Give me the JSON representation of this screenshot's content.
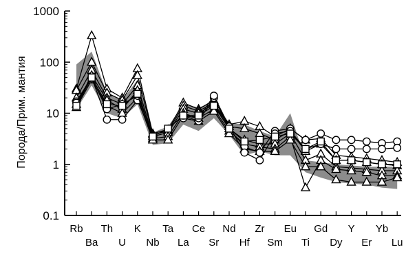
{
  "chart_data": {
    "type": "line",
    "ylabel": "Порода/Прим. мантия",
    "xlabel": "",
    "yscale": "log",
    "ylim": [
      0.1,
      1000
    ],
    "yticks": [
      "0.1",
      "1",
      "10",
      "100",
      "1000"
    ],
    "categories": [
      "Rb",
      "Ba",
      "Th",
      "U",
      "K",
      "Nb",
      "Ta",
      "La",
      "Ce",
      "Sr",
      "Nd",
      "Hf",
      "Zr",
      "Sm",
      "Eu",
      "Ti",
      "Gd",
      "Dy",
      "Y",
      "Er",
      "Yb",
      "Lu"
    ],
    "colors": {
      "envelope": "#8c8c8c",
      "line": "#000000",
      "marker_fill": "#ffffff"
    },
    "envelope": {
      "upper": [
        90,
        160,
        25,
        18,
        45,
        4.2,
        5.5,
        15,
        13,
        16,
        6.5,
        6,
        4.5,
        3.5,
        10,
        1.2,
        1.1,
        1.0,
        0.95,
        0.9,
        0.9,
        0.9
      ],
      "lower": [
        12,
        35,
        10,
        8,
        15,
        2.4,
        2.6,
        6,
        4.5,
        8,
        3.8,
        1.5,
        1.8,
        1.5,
        1.5,
        0.7,
        0.55,
        0.45,
        0.42,
        0.4,
        0.35,
        0.33
      ]
    },
    "series": [
      {
        "marker": "triangle",
        "values": [
          30,
          330,
          30,
          20,
          75,
          4,
          4.8,
          16,
          12,
          18,
          6,
          7,
          5.5,
          3.5,
          5,
          3,
          3.2,
          1.5,
          1.4,
          1.3,
          1.2,
          1.1
        ]
      },
      {
        "marker": "triangle",
        "values": [
          28,
          100,
          25,
          18,
          55,
          3.8,
          4.5,
          14,
          11,
          16,
          5.5,
          5,
          4,
          3,
          4.5,
          1.8,
          2.5,
          1.2,
          1.2,
          1.1,
          1.0,
          0.95
        ]
      },
      {
        "marker": "triangle",
        "values": [
          20,
          70,
          20,
          15,
          35,
          3.5,
          4.2,
          12,
          10,
          15,
          5,
          3,
          2.5,
          2.5,
          4,
          1.2,
          1.6,
          0.9,
          0.85,
          0.8,
          0.75,
          0.75
        ]
      },
      {
        "marker": "triangle",
        "values": [
          15,
          55,
          18,
          12,
          28,
          3.2,
          3.5,
          10,
          8,
          12,
          4.5,
          2.5,
          2.2,
          2,
          3.5,
          0.35,
          1.2,
          0.8,
          0.75,
          0.7,
          0.6,
          0.6
        ]
      },
      {
        "marker": "triangle",
        "values": [
          13,
          45,
          14,
          10,
          20,
          3,
          3,
          9,
          7,
          11,
          4,
          2,
          1.8,
          1.8,
          3,
          0.9,
          0.9,
          0.5,
          0.45,
          0.45,
          0.45,
          0.55
        ]
      },
      {
        "marker": "circle",
        "values": [
          17,
          50,
          7.5,
          7.5,
          18,
          3.5,
          null,
          8,
          7,
          20,
          5,
          2.2,
          1.7,
          4.5,
          5,
          3,
          4,
          3,
          3,
          2.8,
          2.6,
          2.8
        ]
      },
      {
        "marker": "circle",
        "values": [
          16,
          48,
          12,
          15,
          22,
          3.6,
          null,
          9,
          8,
          22,
          5.5,
          1.7,
          1.2,
          4,
          4.5,
          2,
          2.5,
          2,
          2,
          2,
          2,
          2.1
        ]
      },
      {
        "marker": "square",
        "values": [
          14,
          50,
          15,
          14,
          24,
          3.5,
          5,
          9,
          9,
          14,
          5,
          2.8,
          3,
          3.5,
          4,
          2,
          2.8,
          1.2,
          1.2,
          1.1,
          1.0,
          1.0
        ]
      }
    ]
  }
}
